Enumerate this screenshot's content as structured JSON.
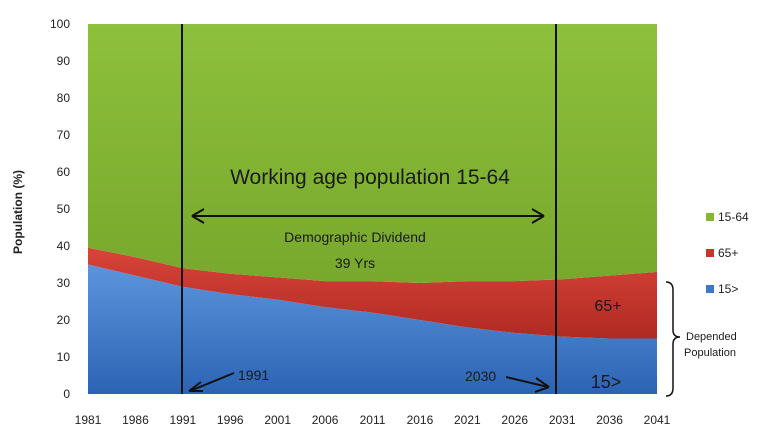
{
  "chart_data": {
    "type": "area",
    "stacked": true,
    "ylabel": "Population (%)",
    "ylim": [
      0,
      100
    ],
    "yticks": [
      0,
      10,
      20,
      30,
      40,
      50,
      60,
      70,
      80,
      90,
      100
    ],
    "x": [
      1981,
      1986,
      1991,
      1996,
      2001,
      2006,
      2011,
      2016,
      2021,
      2026,
      2031,
      2036,
      2041
    ],
    "series": [
      {
        "name": "15>",
        "color": "#3a78c9",
        "values": [
          35,
          32,
          29,
          27,
          25.5,
          23.5,
          22,
          20,
          18,
          16.5,
          15.5,
          15,
          15
        ]
      },
      {
        "name": "65+",
        "color": "#c8332a",
        "values": [
          4.5,
          5,
          5,
          5.5,
          6,
          7,
          8.5,
          10,
          12.5,
          14,
          15.5,
          17,
          18
        ]
      },
      {
        "name": "15-64",
        "color": "#84b535",
        "values": [
          60.5,
          63,
          66,
          67.5,
          68.5,
          69.5,
          69.5,
          70,
          69.5,
          69.5,
          69,
          68,
          67
        ]
      }
    ],
    "legend_position": "right",
    "legend": [
      "15-64",
      "65+",
      "15>"
    ],
    "annotations": {
      "working_age": "Working age population 15-64",
      "dividend": "Demographic Dividend",
      "dividend_years": "39 Yrs",
      "label_65plus": "65+",
      "label_15under": "15>",
      "year_1991": "1991",
      "year_2030": "2030",
      "depended_line1": "Depended",
      "depended_line2": "Population"
    }
  }
}
